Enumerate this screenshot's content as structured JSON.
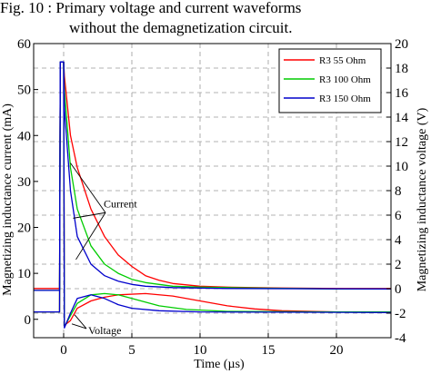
{
  "caption": {
    "line1": "Fig. 10  :  Primary  voltage  and  current  waveforms",
    "line2": "without the demagnetization circuit."
  },
  "chart_data": {
    "type": "line",
    "title": "",
    "xlabel": "Time (µs)",
    "ylabel_left": "Magnetizing inductance current (mA)",
    "ylabel_right": "Magnetizing inductance voltage (V)",
    "xlim": [
      -2.2,
      24
    ],
    "ylim_left": [
      -4,
      60
    ],
    "ylim_right": [
      -4,
      20
    ],
    "x_ticks": [
      "0",
      "5",
      "10",
      "15",
      "20"
    ],
    "y_ticks_left": [
      "0",
      "10",
      "20",
      "30",
      "40",
      "50",
      "60"
    ],
    "y_ticks_right": [
      "-4",
      "-2",
      "0",
      "2",
      "4",
      "6",
      "8",
      "10",
      "12",
      "14",
      "16",
      "18",
      "20"
    ],
    "grid": true,
    "legend_position": "top-right",
    "series": [
      {
        "name": "R3 55 Ohm",
        "color": "#ff0000",
        "current_mA": [
          [
            -2.2,
            6.7
          ],
          [
            -0.3,
            6.7
          ],
          [
            -0.25,
            56
          ],
          [
            0,
            56
          ],
          [
            0.05,
            53
          ],
          [
            0.5,
            40
          ],
          [
            1,
            33
          ],
          [
            2,
            24
          ],
          [
            3,
            18
          ],
          [
            4,
            14
          ],
          [
            5,
            11.5
          ],
          [
            6,
            9.5
          ],
          [
            7,
            8.5
          ],
          [
            8,
            7.8
          ],
          [
            10,
            7.2
          ],
          [
            12,
            7
          ],
          [
            16,
            6.8
          ],
          [
            20,
            6.7
          ],
          [
            24,
            6.7
          ]
        ],
        "voltage_V": [
          [
            -2.2,
            -1.9
          ],
          [
            -0.3,
            -1.9
          ],
          [
            -0.25,
            18.5
          ],
          [
            0,
            18.5
          ],
          [
            0.05,
            -3.0
          ],
          [
            0.5,
            -2.6
          ],
          [
            1,
            -1.6
          ],
          [
            2,
            -1.0
          ],
          [
            3,
            -0.7
          ],
          [
            4,
            -0.5
          ],
          [
            6,
            -0.4
          ],
          [
            8,
            -0.6
          ],
          [
            10,
            -1.0
          ],
          [
            12,
            -1.4
          ],
          [
            14,
            -1.65
          ],
          [
            16,
            -1.8
          ],
          [
            20,
            -1.9
          ],
          [
            24,
            -1.9
          ]
        ]
      },
      {
        "name": "R3 100 Ohm",
        "color": "#00cc00",
        "current_mA": [
          [
            -2.2,
            6.3
          ],
          [
            -0.3,
            6.3
          ],
          [
            -0.25,
            56
          ],
          [
            0,
            56
          ],
          [
            0.05,
            50
          ],
          [
            0.5,
            33
          ],
          [
            1,
            24
          ],
          [
            2,
            16
          ],
          [
            3,
            12
          ],
          [
            4,
            10
          ],
          [
            5,
            8.7
          ],
          [
            6,
            8
          ],
          [
            8,
            7.2
          ],
          [
            10,
            7
          ],
          [
            14,
            6.8
          ],
          [
            20,
            6.6
          ],
          [
            24,
            6.6
          ]
        ],
        "voltage_V": [
          [
            -2.2,
            -1.9
          ],
          [
            -0.3,
            -1.9
          ],
          [
            -0.25,
            18.5
          ],
          [
            0,
            18.5
          ],
          [
            0.05,
            -3.1
          ],
          [
            0.5,
            -2.2
          ],
          [
            1,
            -1.2
          ],
          [
            2,
            -0.5
          ],
          [
            3,
            -0.4
          ],
          [
            4,
            -0.5
          ],
          [
            5,
            -0.8
          ],
          [
            7,
            -1.4
          ],
          [
            9,
            -1.7
          ],
          [
            12,
            -1.85
          ],
          [
            20,
            -1.9
          ],
          [
            24,
            -1.9
          ]
        ]
      },
      {
        "name": "R3 150 Ohm",
        "color": "#0000cc",
        "current_mA": [
          [
            -2.2,
            6.3
          ],
          [
            -0.3,
            6.3
          ],
          [
            -0.25,
            56
          ],
          [
            0,
            56
          ],
          [
            0.05,
            46
          ],
          [
            0.5,
            28
          ],
          [
            1,
            18
          ],
          [
            2,
            12
          ],
          [
            3,
            9.5
          ],
          [
            4,
            8.3
          ],
          [
            5,
            7.6
          ],
          [
            6,
            7.2
          ],
          [
            8,
            6.9
          ],
          [
            12,
            6.7
          ],
          [
            24,
            6.6
          ]
        ],
        "voltage_V": [
          [
            -2.2,
            -1.9
          ],
          [
            -0.3,
            -1.9
          ],
          [
            -0.25,
            18.5
          ],
          [
            0,
            18.5
          ],
          [
            0.05,
            -3.2
          ],
          [
            0.5,
            -2.0
          ],
          [
            1,
            -0.8
          ],
          [
            2,
            -0.5
          ],
          [
            3,
            -0.8
          ],
          [
            4,
            -1.3
          ],
          [
            5,
            -1.6
          ],
          [
            7,
            -1.8
          ],
          [
            10,
            -1.9
          ],
          [
            24,
            -1.95
          ]
        ]
      }
    ],
    "annotations": [
      {
        "text": "Current",
        "x": 2.8,
        "y_mA": 24
      },
      {
        "text": "Voltage",
        "x": 1.8,
        "y_mA": -2.4
      }
    ]
  }
}
